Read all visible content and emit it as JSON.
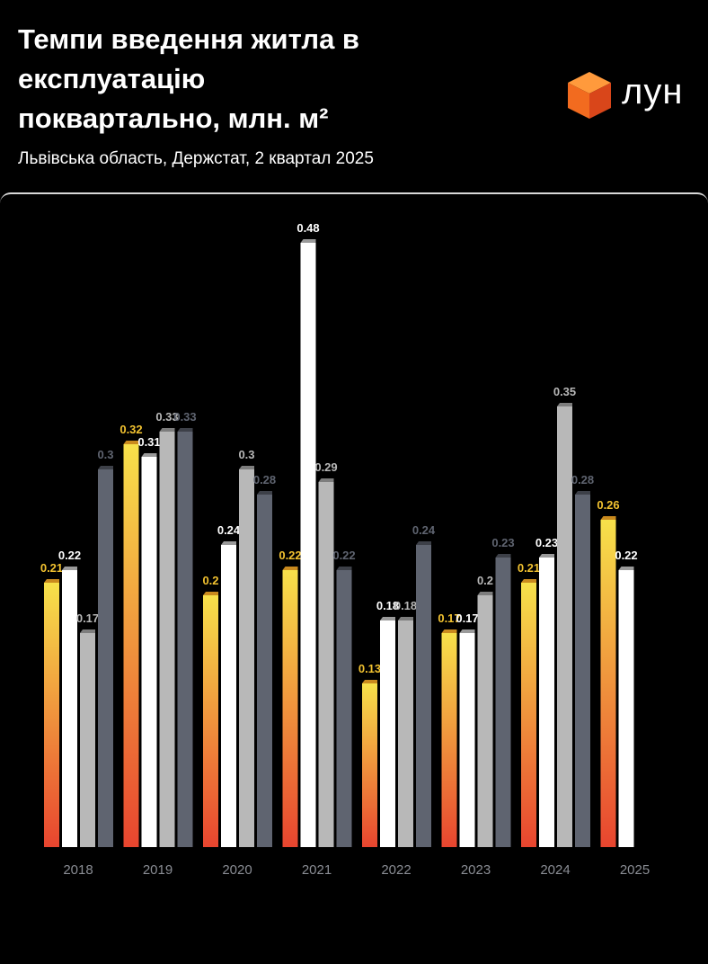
{
  "header": {
    "title": "Темпи введення житла в\nексплуатацію\nпоквартально, млн. м²",
    "subtitle": "Львівська область, Держстат, 2 квартал 2025",
    "logo_text": "лун",
    "logo_icon": "cube-icon"
  },
  "colors": {
    "background": "#000000",
    "q1_top": "#f7e14a",
    "q1_bottom": "#e8452f",
    "q1_label": "#f2c230",
    "q2": "#ffffff",
    "q3": "#b8b8b8",
    "q4": "#5f6470",
    "axis_label": "#8a8d94",
    "logo_orange": "#f26b1f"
  },
  "chart_data": {
    "type": "bar",
    "categories": [
      "2018",
      "2019",
      "2020",
      "2021",
      "2022",
      "2023",
      "2024",
      "2025"
    ],
    "series": [
      {
        "values": [
          0.21,
          0.32,
          0.2,
          0.22,
          0.13,
          0.17,
          0.21,
          0.26
        ],
        "labels": [
          "0.21",
          "0.32",
          "0.2",
          "0.22",
          "0.13",
          "0.17",
          "0.21",
          "0.26"
        ]
      },
      {
        "values": [
          0.22,
          0.31,
          0.24,
          0.48,
          0.18,
          0.17,
          0.23,
          0.22
        ],
        "labels": [
          "0.22",
          "0.31",
          "0.24",
          "0.48",
          "0.18",
          "0.17",
          "0.23",
          "0.22"
        ]
      },
      {
        "values": [
          0.17,
          0.33,
          0.3,
          0.29,
          0.18,
          0.2,
          0.35,
          null
        ],
        "labels": [
          "0.17",
          "0.33",
          "0.3",
          "0.29",
          "0.18",
          "0.2",
          "0.35",
          ""
        ]
      },
      {
        "values": [
          0.3,
          0.33,
          0.28,
          0.22,
          0.24,
          0.23,
          0.28,
          null
        ],
        "labels": [
          "0.3",
          "0.33",
          "0.28",
          "0.22",
          "0.24",
          "0.23",
          "0.28",
          ""
        ]
      }
    ],
    "ylim": [
      0,
      0.5
    ],
    "grid": false,
    "legend": "none"
  }
}
